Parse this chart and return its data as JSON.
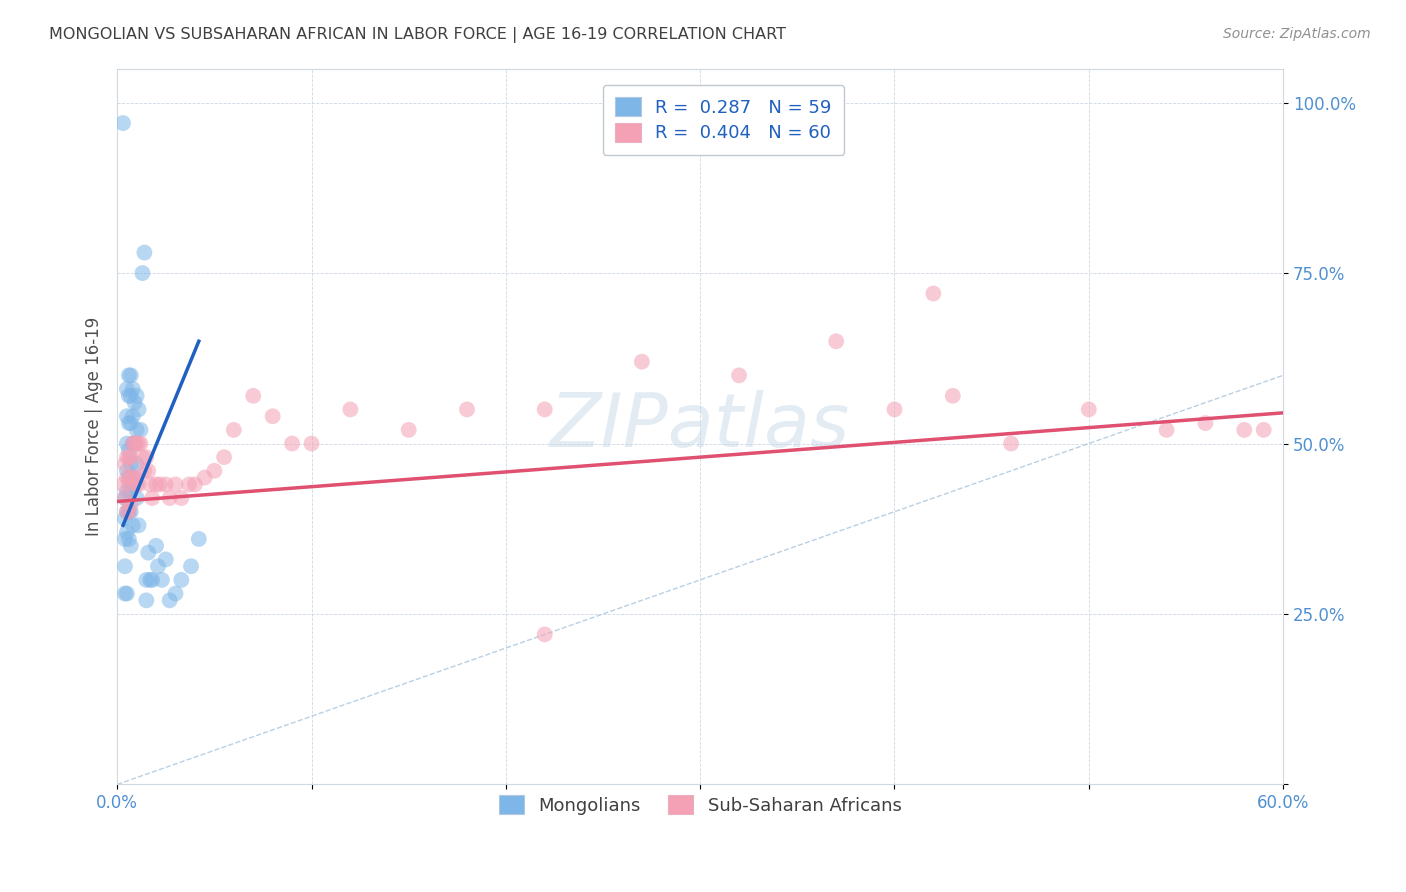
{
  "title": "MONGOLIAN VS SUBSAHARAN AFRICAN IN LABOR FORCE | AGE 16-19 CORRELATION CHART",
  "source": "Source: ZipAtlas.com",
  "ylabel": "In Labor Force | Age 16-19",
  "xlim": [
    0.0,
    0.6
  ],
  "ylim": [
    0.0,
    1.05
  ],
  "legend_r1": "R =  0.287   N = 59",
  "legend_r2": "R =  0.404   N = 60",
  "legend_label1": "Mongolians",
  "legend_label2": "Sub-Saharan Africans",
  "color_mongolian": "#7EB6E8",
  "color_subsaharan": "#F4A0B5",
  "color_trend_mongolian": "#2060C0",
  "color_trend_subsaharan": "#E05070",
  "color_diagonal": "#A8C4DC",
  "title_color": "#404040",
  "axis_tick_color": "#5090D0",
  "watermark": "ZIPatlas",
  "mongolian_x": [
    0.003,
    0.004,
    0.004,
    0.004,
    0.004,
    0.004,
    0.005,
    0.005,
    0.005,
    0.005,
    0.005,
    0.005,
    0.005,
    0.005,
    0.006,
    0.006,
    0.006,
    0.006,
    0.006,
    0.006,
    0.006,
    0.007,
    0.007,
    0.007,
    0.007,
    0.007,
    0.007,
    0.007,
    0.008,
    0.008,
    0.008,
    0.008,
    0.008,
    0.009,
    0.009,
    0.009,
    0.01,
    0.01,
    0.01,
    0.01,
    0.011,
    0.011,
    0.012,
    0.013,
    0.014,
    0.015,
    0.015,
    0.016,
    0.017,
    0.018,
    0.02,
    0.021,
    0.023,
    0.025,
    0.027,
    0.03,
    0.033,
    0.038,
    0.042
  ],
  "mongolian_y": [
    0.97,
    0.42,
    0.39,
    0.36,
    0.32,
    0.28,
    0.58,
    0.54,
    0.5,
    0.46,
    0.43,
    0.4,
    0.37,
    0.28,
    0.6,
    0.57,
    0.53,
    0.49,
    0.45,
    0.4,
    0.36,
    0.6,
    0.57,
    0.53,
    0.47,
    0.43,
    0.4,
    0.35,
    0.58,
    0.54,
    0.5,
    0.44,
    0.38,
    0.56,
    0.5,
    0.45,
    0.57,
    0.52,
    0.47,
    0.42,
    0.38,
    0.55,
    0.52,
    0.75,
    0.78,
    0.3,
    0.27,
    0.34,
    0.3,
    0.3,
    0.35,
    0.32,
    0.3,
    0.33,
    0.27,
    0.28,
    0.3,
    0.32,
    0.36
  ],
  "subsaharan_x": [
    0.003,
    0.004,
    0.004,
    0.005,
    0.005,
    0.005,
    0.006,
    0.006,
    0.006,
    0.007,
    0.007,
    0.007,
    0.008,
    0.008,
    0.009,
    0.009,
    0.01,
    0.01,
    0.011,
    0.011,
    0.012,
    0.013,
    0.014,
    0.015,
    0.016,
    0.017,
    0.018,
    0.02,
    0.022,
    0.025,
    0.027,
    0.03,
    0.033,
    0.037,
    0.04,
    0.045,
    0.05,
    0.055,
    0.06,
    0.07,
    0.08,
    0.09,
    0.1,
    0.12,
    0.15,
    0.18,
    0.22,
    0.27,
    0.32,
    0.37,
    0.4,
    0.43,
    0.46,
    0.5,
    0.54,
    0.56,
    0.58,
    0.59,
    0.22,
    0.42
  ],
  "subsaharan_y": [
    0.44,
    0.47,
    0.42,
    0.48,
    0.45,
    0.4,
    0.48,
    0.44,
    0.4,
    0.48,
    0.45,
    0.41,
    0.5,
    0.45,
    0.5,
    0.45,
    0.5,
    0.44,
    0.5,
    0.44,
    0.5,
    0.48,
    0.46,
    0.48,
    0.46,
    0.44,
    0.42,
    0.44,
    0.44,
    0.44,
    0.42,
    0.44,
    0.42,
    0.44,
    0.44,
    0.45,
    0.46,
    0.48,
    0.52,
    0.57,
    0.54,
    0.5,
    0.5,
    0.55,
    0.52,
    0.55,
    0.55,
    0.62,
    0.6,
    0.65,
    0.55,
    0.57,
    0.5,
    0.55,
    0.52,
    0.53,
    0.52,
    0.52,
    0.22,
    0.72
  ],
  "mon_trend_x0": 0.003,
  "mon_trend_x1": 0.042,
  "mon_trend_y0": 0.38,
  "mon_trend_y1": 0.65,
  "sub_trend_x0": 0.0,
  "sub_trend_x1": 0.6,
  "sub_trend_y0": 0.415,
  "sub_trend_y1": 0.545
}
